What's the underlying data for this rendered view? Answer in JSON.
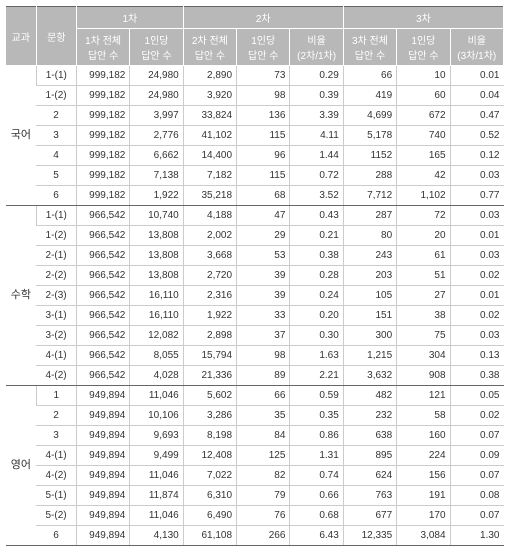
{
  "header": {
    "subject": "교과",
    "item": "문항",
    "g1": "1차",
    "g2": "2차",
    "g3": "3차",
    "c1a": "1차 전체\n답안 수",
    "c1b": "1인당\n답안 수",
    "c2a": "2차 전체\n답안 수",
    "c2b": "1인당\n답안 수",
    "c2c": "비율\n(2차/1차)",
    "c3a": "3차 전체\n답안 수",
    "c3b": "1인당\n답안 수",
    "c3c": "비율\n(3차/1차)"
  },
  "subjects": [
    {
      "name": "국어",
      "rows": [
        {
          "item": "1-(1)",
          "c1a": "999,182",
          "c1b": "24,980",
          "c2a": "2,890",
          "c2b": "73",
          "c2c": "0.29",
          "c3a": "66",
          "c3b": "10",
          "c3c": "0.01"
        },
        {
          "item": "1-(2)",
          "c1a": "999,182",
          "c1b": "24,980",
          "c2a": "3,920",
          "c2b": "98",
          "c2c": "0.39",
          "c3a": "419",
          "c3b": "60",
          "c3c": "0.04"
        },
        {
          "item": "2",
          "c1a": "999,182",
          "c1b": "3,997",
          "c2a": "33,824",
          "c2b": "136",
          "c2c": "3.39",
          "c3a": "4,699",
          "c3b": "672",
          "c3c": "0.47"
        },
        {
          "item": "3",
          "c1a": "999,182",
          "c1b": "2,776",
          "c2a": "41,102",
          "c2b": "115",
          "c2c": "4.11",
          "c3a": "5,178",
          "c3b": "740",
          "c3c": "0.52"
        },
        {
          "item": "4",
          "c1a": "999,182",
          "c1b": "6,662",
          "c2a": "14,400",
          "c2b": "96",
          "c2c": "1.44",
          "c3a": "1152",
          "c3b": "165",
          "c3c": "0.12"
        },
        {
          "item": "5",
          "c1a": "999,182",
          "c1b": "7,138",
          "c2a": "7,182",
          "c2b": "115",
          "c2c": "0.72",
          "c3a": "288",
          "c3b": "42",
          "c3c": "0.03"
        },
        {
          "item": "6",
          "c1a": "999,182",
          "c1b": "1,922",
          "c2a": "35,218",
          "c2b": "68",
          "c2c": "3.52",
          "c3a": "7,712",
          "c3b": "1,102",
          "c3c": "0.77"
        }
      ]
    },
    {
      "name": "수학",
      "rows": [
        {
          "item": "1-(1)",
          "c1a": "966,542",
          "c1b": "10,740",
          "c2a": "4,188",
          "c2b": "47",
          "c2c": "0.43",
          "c3a": "287",
          "c3b": "72",
          "c3c": "0.03"
        },
        {
          "item": "1-(2)",
          "c1a": "966,542",
          "c1b": "13,808",
          "c2a": "2,002",
          "c2b": "29",
          "c2c": "0.21",
          "c3a": "80",
          "c3b": "20",
          "c3c": "0.01"
        },
        {
          "item": "2-(1)",
          "c1a": "966,542",
          "c1b": "13,808",
          "c2a": "3,668",
          "c2b": "53",
          "c2c": "0.38",
          "c3a": "243",
          "c3b": "61",
          "c3c": "0.03"
        },
        {
          "item": "2-(2)",
          "c1a": "966,542",
          "c1b": "13,808",
          "c2a": "2,720",
          "c2b": "39",
          "c2c": "0.28",
          "c3a": "203",
          "c3b": "51",
          "c3c": "0.02"
        },
        {
          "item": "2-(3)",
          "c1a": "966,542",
          "c1b": "16,110",
          "c2a": "2,316",
          "c2b": "39",
          "c2c": "0.24",
          "c3a": "105",
          "c3b": "27",
          "c3c": "0.01"
        },
        {
          "item": "3-(1)",
          "c1a": "966,542",
          "c1b": "16,110",
          "c2a": "1,922",
          "c2b": "33",
          "c2c": "0.20",
          "c3a": "151",
          "c3b": "38",
          "c3c": "0.02"
        },
        {
          "item": "3-(2)",
          "c1a": "966,542",
          "c1b": "12,082",
          "c2a": "2,898",
          "c2b": "37",
          "c2c": "0.30",
          "c3a": "300",
          "c3b": "75",
          "c3c": "0.03"
        },
        {
          "item": "4-(1)",
          "c1a": "966,542",
          "c1b": "8,055",
          "c2a": "15,794",
          "c2b": "98",
          "c2c": "1.63",
          "c3a": "1,215",
          "c3b": "304",
          "c3c": "0.13"
        },
        {
          "item": "4-(2)",
          "c1a": "966,542",
          "c1b": "4,028",
          "c2a": "21,336",
          "c2b": "89",
          "c2c": "2.21",
          "c3a": "3,632",
          "c3b": "908",
          "c3c": "0.38"
        }
      ]
    },
    {
      "name": "영어",
      "rows": [
        {
          "item": "1",
          "c1a": "949,894",
          "c1b": "11,046",
          "c2a": "5,602",
          "c2b": "66",
          "c2c": "0.59",
          "c3a": "482",
          "c3b": "121",
          "c3c": "0.05"
        },
        {
          "item": "2",
          "c1a": "949,894",
          "c1b": "10,106",
          "c2a": "3,286",
          "c2b": "35",
          "c2c": "0.35",
          "c3a": "232",
          "c3b": "58",
          "c3c": "0.02"
        },
        {
          "item": "3",
          "c1a": "949,894",
          "c1b": "9,693",
          "c2a": "8,198",
          "c2b": "84",
          "c2c": "0.86",
          "c3a": "638",
          "c3b": "160",
          "c3c": "0.07"
        },
        {
          "item": "4-(1)",
          "c1a": "949,894",
          "c1b": "9,499",
          "c2a": "12,408",
          "c2b": "125",
          "c2c": "1.31",
          "c3a": "895",
          "c3b": "224",
          "c3c": "0.09"
        },
        {
          "item": "4-(2)",
          "c1a": "949,894",
          "c1b": "11,046",
          "c2a": "7,022",
          "c2b": "82",
          "c2c": "0.74",
          "c3a": "624",
          "c3b": "156",
          "c3c": "0.07"
        },
        {
          "item": "5-(1)",
          "c1a": "949,894",
          "c1b": "11,874",
          "c2a": "6,310",
          "c2b": "79",
          "c2c": "0.66",
          "c3a": "763",
          "c3b": "191",
          "c3c": "0.08"
        },
        {
          "item": "5-(2)",
          "c1a": "949,894",
          "c1b": "11,046",
          "c2a": "6,490",
          "c2b": "76",
          "c2c": "0.68",
          "c3a": "677",
          "c3b": "170",
          "c3c": "0.07"
        },
        {
          "item": "6",
          "c1a": "949,894",
          "c1b": "4,130",
          "c2a": "61,108",
          "c2b": "266",
          "c2c": "6.43",
          "c3a": "12,335",
          "c3b": "3,084",
          "c3c": "1.30"
        }
      ]
    }
  ]
}
